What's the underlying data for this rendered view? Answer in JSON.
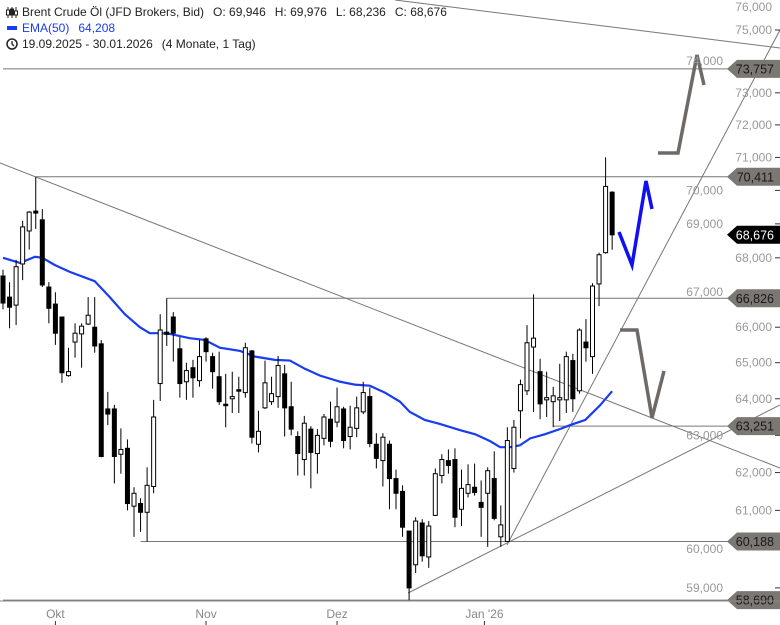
{
  "header": {
    "instrument": "Brent Crude Öl (JFD Brokers, Bid)",
    "open": "O: 69,946",
    "high": "H: 69,976",
    "low": "L: 68,236",
    "close": "C: 68,676",
    "ema_label": "EMA(50)",
    "ema_value": "64,208",
    "range": "19.09.2025 - 30.01.2026",
    "range_length": "(4 Monate, 1 Tag)",
    "icons": {
      "instrument": "candlestick-icon",
      "ema": "line-legend-icon",
      "range": "clock-icon"
    }
  },
  "chart_data": {
    "type": "candlestick",
    "title": "Brent Crude Öl (JFD Brokers, Bid)",
    "y_scale": "log",
    "ylim": [
      58.45,
      76.0
    ],
    "grid": false,
    "colors": {
      "up": "#ffffff",
      "down": "#000000",
      "ema": "#1a3cf0",
      "level": "#7b7773",
      "current": "#000000",
      "projection_blue": "#1010f0",
      "projection_gray": "#6e6a68"
    },
    "y_ticks": [
      "76,000",
      "75,000",
      "74,000",
      "73,000",
      "72,000",
      "71,000",
      "70,000",
      "69,000",
      "68,000",
      "67,000",
      "66,000",
      "65,000",
      "64,000",
      "63,000",
      "62,000",
      "61,000",
      "60,000",
      "59,000"
    ],
    "y_tick_values": [
      76,
      75,
      74,
      73,
      72,
      71,
      70,
      69,
      68,
      67,
      66,
      65,
      64,
      63,
      62,
      61,
      60,
      59
    ],
    "x_ticks": [
      {
        "label": "Okt",
        "index": 8
      },
      {
        "label": "Nov",
        "index": 31
      },
      {
        "label": "Dez",
        "index": 51
      },
      {
        "label": "Jan '26",
        "index": 73.5
      }
    ],
    "ohlc": [
      [
        67.47,
        67.65,
        66.51,
        66.69
      ],
      [
        66.86,
        67.29,
        65.97,
        66.57
      ],
      [
        66.63,
        67.94,
        66.06,
        67.74
      ],
      [
        67.82,
        69.09,
        67.35,
        68.91
      ],
      [
        68.79,
        69.38,
        68.24,
        69.35
      ],
      [
        69.38,
        70.41,
        68.85,
        69.32
      ],
      [
        69.12,
        69.44,
        67.15,
        67.21
      ],
      [
        67.15,
        67.29,
        66.11,
        66.54
      ],
      [
        66.66,
        67.0,
        65.5,
        65.83
      ],
      [
        66.29,
        66.29,
        64.44,
        64.72
      ],
      [
        64.64,
        65.42,
        64.61,
        64.75
      ],
      [
        65.58,
        66.11,
        65.14,
        65.83
      ],
      [
        65.81,
        66.11,
        64.86,
        66.03
      ],
      [
        66.09,
        66.86,
        66.06,
        66.34
      ],
      [
        66.0,
        66.86,
        65.28,
        65.47
      ],
      [
        65.53,
        65.64,
        62.41,
        62.43
      ],
      [
        63.72,
        64.19,
        63.28,
        63.58
      ],
      [
        63.72,
        63.83,
        61.71,
        62.43
      ],
      [
        62.49,
        63.19,
        61.97,
        62.62
      ],
      [
        62.65,
        62.89,
        61.0,
        61.18
      ],
      [
        61.11,
        61.61,
        60.31,
        61.45
      ],
      [
        61.18,
        61.32,
        60.44,
        60.95
      ],
      [
        60.95,
        62.14,
        60.19,
        61.66
      ],
      [
        61.63,
        63.97,
        61.45,
        63.5
      ],
      [
        64.42,
        66.37,
        63.94,
        65.92
      ],
      [
        65.86,
        66.83,
        65.47,
        65.8
      ],
      [
        66.29,
        66.43,
        65.03,
        65.83
      ],
      [
        65.39,
        65.72,
        64.03,
        64.42
      ],
      [
        64.47,
        65.0,
        63.97,
        64.78
      ],
      [
        64.86,
        65.08,
        64.03,
        64.58
      ],
      [
        64.5,
        65.64,
        64.33,
        65.17
      ],
      [
        65.67,
        65.72,
        65.03,
        65.31
      ],
      [
        65.17,
        65.28,
        64.28,
        64.75
      ],
      [
        64.61,
        65.31,
        63.83,
        63.92
      ],
      [
        63.85,
        64.69,
        63.22,
        63.83
      ],
      [
        64.0,
        64.75,
        63.61,
        64.06
      ],
      [
        64.25,
        64.61,
        63.61,
        64.22
      ],
      [
        64.17,
        65.56,
        64.03,
        65.42
      ],
      [
        65.33,
        65.36,
        62.78,
        62.95
      ],
      [
        62.76,
        63.67,
        62.54,
        63.11
      ],
      [
        63.75,
        65.06,
        63.72,
        64.44
      ],
      [
        63.92,
        64.61,
        63.83,
        64.14
      ],
      [
        64.06,
        65.19,
        63.75,
        64.92
      ],
      [
        64.69,
        64.94,
        62.97,
        63.75
      ],
      [
        63.78,
        64.47,
        63.0,
        63.17
      ],
      [
        62.97,
        63.11,
        61.92,
        62.51
      ],
      [
        62.35,
        63.53,
        61.92,
        63.33
      ],
      [
        63.17,
        63.25,
        61.58,
        62.54
      ],
      [
        62.51,
        63.17,
        61.97,
        63.0
      ],
      [
        62.92,
        63.58,
        62.73,
        63.5
      ],
      [
        63.44,
        63.92,
        62.68,
        62.84
      ],
      [
        63.36,
        64.31,
        63.22,
        63.78
      ],
      [
        63.72,
        63.78,
        62.65,
        62.86
      ],
      [
        62.97,
        63.81,
        62.62,
        63.22
      ],
      [
        63.19,
        64.06,
        62.95,
        63.75
      ],
      [
        63.64,
        64.47,
        63.58,
        64.17
      ],
      [
        64.06,
        64.31,
        62.68,
        62.78
      ],
      [
        62.76,
        63.06,
        62.11,
        62.38
      ],
      [
        62.32,
        63.06,
        61.63,
        62.95
      ],
      [
        62.76,
        62.86,
        61.03,
        61.84
      ],
      [
        61.84,
        62.08,
        61.03,
        61.45
      ],
      [
        61.5,
        61.66,
        60.31,
        60.56
      ],
      [
        60.46,
        60.46,
        58.69,
        59.0
      ],
      [
        59.59,
        60.82,
        59.38,
        60.72
      ],
      [
        60.67,
        60.77,
        59.67,
        59.82
      ],
      [
        59.79,
        60.72,
        59.51,
        60.59
      ],
      [
        60.87,
        62.11,
        60.85,
        61.97
      ],
      [
        61.92,
        62.49,
        61.71,
        62.35
      ],
      [
        62.32,
        62.62,
        61.97,
        62.19
      ],
      [
        62.35,
        62.65,
        60.56,
        60.82
      ],
      [
        61.03,
        62.08,
        60.59,
        61.58
      ],
      [
        61.45,
        62.22,
        61.34,
        61.68
      ],
      [
        61.61,
        62.24,
        61.39,
        61.47
      ],
      [
        61.21,
        61.79,
        60.31,
        61.08
      ],
      [
        61.45,
        62.14,
        60.05,
        62.05
      ],
      [
        61.84,
        62.57,
        60.74,
        60.79
      ],
      [
        60.31,
        61.13,
        60.05,
        60.62
      ],
      [
        60.19,
        63.22,
        60.19,
        62.86
      ],
      [
        62.11,
        63.42,
        62.0,
        63.22
      ],
      [
        63.67,
        64.53,
        62.92,
        64.39
      ],
      [
        64.22,
        66.06,
        64.1,
        65.56
      ],
      [
        65.44,
        66.94,
        63.64,
        65.69
      ],
      [
        64.75,
        65.11,
        63.44,
        63.86
      ],
      [
        63.97,
        64.75,
        63.5,
        64.03
      ],
      [
        63.92,
        64.33,
        63.22,
        64.08
      ],
      [
        63.97,
        64.97,
        63.39,
        64.03
      ],
      [
        63.97,
        65.31,
        63.61,
        65.17
      ],
      [
        65.06,
        65.25,
        63.64,
        64.0
      ],
      [
        64.22,
        65.97,
        64.14,
        65.92
      ],
      [
        65.58,
        66.23,
        65.03,
        65.42
      ],
      [
        65.17,
        67.26,
        64.69,
        67.18
      ],
      [
        67.24,
        68.15,
        66.6,
        68.09
      ],
      [
        68.15,
        71.0,
        68.12,
        70.12
      ],
      [
        69.946,
        69.976,
        68.236,
        68.676
      ]
    ],
    "ema": {
      "name": "EMA(50)",
      "points": [
        [
          0,
          68.0
        ],
        [
          2.6,
          67.85
        ],
        [
          4.9,
          68.03
        ],
        [
          6,
          68.0
        ],
        [
          7.9,
          67.79
        ],
        [
          10.2,
          67.59
        ],
        [
          14,
          67.32
        ],
        [
          16.3,
          66.86
        ],
        [
          18.6,
          66.37
        ],
        [
          20.9,
          66.0
        ],
        [
          22.4,
          65.83
        ],
        [
          24,
          65.83
        ],
        [
          25.5,
          65.81
        ],
        [
          28.5,
          65.69
        ],
        [
          30.8,
          65.64
        ],
        [
          33.1,
          65.42
        ],
        [
          36.2,
          65.33
        ],
        [
          38.5,
          65.17
        ],
        [
          41.5,
          65.08
        ],
        [
          43.8,
          65.06
        ],
        [
          46.1,
          64.83
        ],
        [
          48.4,
          64.64
        ],
        [
          51.5,
          64.47
        ],
        [
          53.7,
          64.39
        ],
        [
          56,
          64.36
        ],
        [
          58.3,
          64.17
        ],
        [
          60.6,
          63.92
        ],
        [
          62.1,
          63.64
        ],
        [
          64.4,
          63.42
        ],
        [
          66.7,
          63.31
        ],
        [
          69.8,
          63.14
        ],
        [
          72.1,
          63.03
        ],
        [
          74.4,
          62.84
        ],
        [
          75.9,
          62.68
        ],
        [
          77.4,
          62.68
        ],
        [
          78.9,
          62.73
        ],
        [
          80.5,
          62.92
        ],
        [
          82.7,
          63.03
        ],
        [
          85,
          63.17
        ],
        [
          86.6,
          63.28
        ],
        [
          88.9,
          63.42
        ],
        [
          91.1,
          63.81
        ],
        [
          93,
          64.208
        ]
      ]
    },
    "levels": [
      {
        "value": 73.757,
        "label": "73,757",
        "from_index": 0
      },
      {
        "value": 70.411,
        "label": "70,411",
        "from_index": 5
      },
      {
        "value": 66.826,
        "label": "66,826",
        "from_index": 25
      },
      {
        "value": 63.251,
        "label": "63,251",
        "from_index": 84
      },
      {
        "value": 60.188,
        "label": "60,188",
        "from_index": 21
      },
      {
        "value": 58.69,
        "label": "58,690",
        "from_index": 0
      }
    ],
    "current_price": {
      "value": 68.676,
      "label": "68,676"
    }
  }
}
